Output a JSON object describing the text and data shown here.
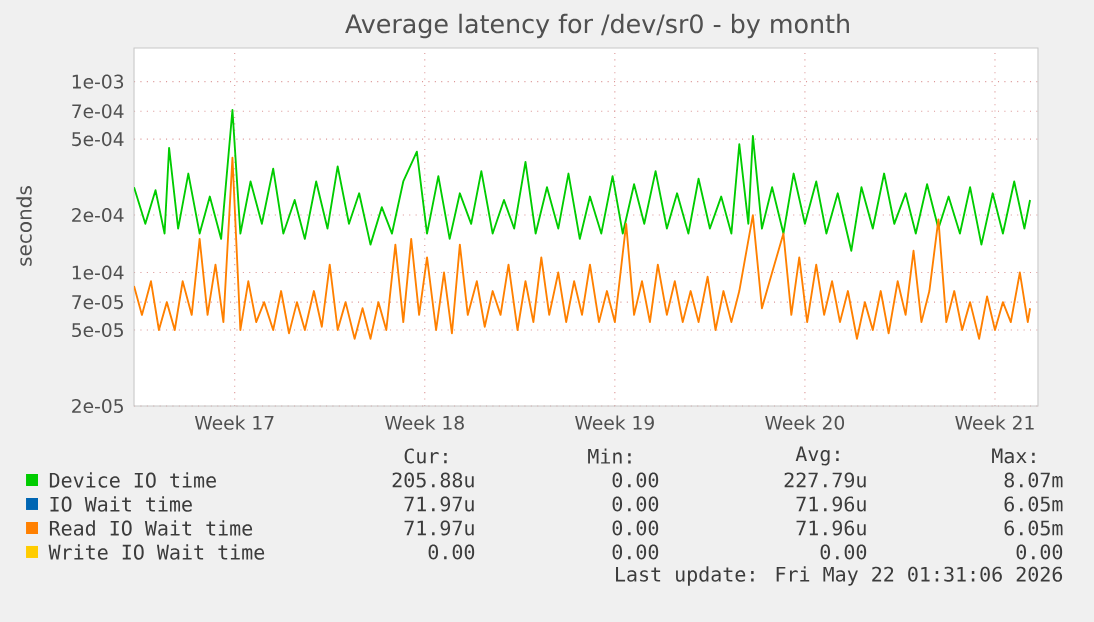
{
  "chart_data": {
    "type": "line",
    "title": "Average latency for /dev/sr0 - by month",
    "ylabel": "seconds",
    "log": true,
    "grid": true,
    "legend": "bottom",
    "xlim": [
      "2026-04-19T19:00",
      "2026-05-23T02:00"
    ],
    "xticks": [
      {
        "value": "2026-04-23T12:00",
        "label": "Week 17"
      },
      {
        "value": "2026-04-30T12:00",
        "label": "Week 18"
      },
      {
        "value": "2026-05-07T12:00",
        "label": "Week 19"
      },
      {
        "value": "2026-05-14T12:00",
        "label": "Week 20"
      },
      {
        "value": "2026-05-21T12:00",
        "label": "Week 21"
      }
    ],
    "ylim": [
      2e-05,
      0.0015
    ],
    "yticks": [
      {
        "value": 2e-05,
        "label": "2e-05"
      },
      {
        "value": 5e-05,
        "label": "5e-05"
      },
      {
        "value": 7e-05,
        "label": "7e-05"
      },
      {
        "value": 0.0001,
        "label": "1e-04"
      },
      {
        "value": 0.0002,
        "label": "2e-04"
      },
      {
        "value": 0.0005,
        "label": "5e-04"
      },
      {
        "value": 0.0007,
        "label": "7e-04"
      },
      {
        "value": 0.001,
        "label": "1e-03"
      }
    ],
    "series": [
      {
        "name": "Device IO time",
        "color": "#00cc00",
        "x": [
          "2026-04-19T19:00",
          "2026-04-20T05:00",
          "2026-04-20T14:00",
          "2026-04-20T22:00",
          "2026-04-21T02:00",
          "2026-04-21T10:00",
          "2026-04-21T19:00",
          "2026-04-22T05:00",
          "2026-04-22T14:00",
          "2026-04-23T00:00",
          "2026-04-23T10:00",
          "2026-04-23T17:00",
          "2026-04-24T02:00",
          "2026-04-24T12:00",
          "2026-04-24T22:00",
          "2026-04-25T07:00",
          "2026-04-25T17:00",
          "2026-04-26T02:00",
          "2026-04-26T12:00",
          "2026-04-26T22:00",
          "2026-04-27T07:00",
          "2026-04-27T17:00",
          "2026-04-28T02:00",
          "2026-04-28T12:00",
          "2026-04-28T22:00",
          "2026-04-29T07:00",
          "2026-04-29T17:00",
          "2026-04-30T05:00",
          "2026-04-30T14:00",
          "2026-05-01T00:00",
          "2026-05-01T10:00",
          "2026-05-01T19:00",
          "2026-05-02T05:00",
          "2026-05-02T14:00",
          "2026-05-03T00:00",
          "2026-05-03T10:00",
          "2026-05-03T19:00",
          "2026-05-04T05:00",
          "2026-05-04T14:00",
          "2026-05-05T00:00",
          "2026-05-05T10:00",
          "2026-05-05T19:00",
          "2026-05-06T05:00",
          "2026-05-06T14:00",
          "2026-05-07T00:00",
          "2026-05-07T10:00",
          "2026-05-07T19:00",
          "2026-05-08T05:00",
          "2026-05-08T14:00",
          "2026-05-09T00:00",
          "2026-05-09T10:00",
          "2026-05-09T19:00",
          "2026-05-10T05:00",
          "2026-05-10T14:00",
          "2026-05-11T00:00",
          "2026-05-11T10:00",
          "2026-05-11T19:00",
          "2026-05-12T02:00",
          "2026-05-12T10:00",
          "2026-05-12T14:00",
          "2026-05-12T22:00",
          "2026-05-13T07:00",
          "2026-05-13T17:00",
          "2026-05-14T02:00",
          "2026-05-14T12:00",
          "2026-05-14T22:00",
          "2026-05-15T07:00",
          "2026-05-15T17:00",
          "2026-05-16T05:00",
          "2026-05-16T14:00",
          "2026-05-17T00:00",
          "2026-05-17T10:00",
          "2026-05-17T19:00",
          "2026-05-18T05:00",
          "2026-05-18T14:00",
          "2026-05-19T00:00",
          "2026-05-19T10:00",
          "2026-05-19T19:00",
          "2026-05-20T05:00",
          "2026-05-20T14:00",
          "2026-05-21T00:00",
          "2026-05-21T10:00",
          "2026-05-21T19:00",
          "2026-05-22T05:00",
          "2026-05-22T14:00",
          "2026-05-22T19:00"
        ],
        "values": [
          0.00028,
          0.00018,
          0.00027,
          0.00016,
          0.00045,
          0.00017,
          0.00033,
          0.00016,
          0.00025,
          0.00015,
          0.00071,
          0.00016,
          0.0003,
          0.00018,
          0.00035,
          0.00016,
          0.00024,
          0.00015,
          0.0003,
          0.00017,
          0.00036,
          0.00018,
          0.00026,
          0.00014,
          0.00022,
          0.00016,
          0.0003,
          0.00043,
          0.00016,
          0.00032,
          0.00015,
          0.00026,
          0.00018,
          0.00034,
          0.00016,
          0.00024,
          0.00017,
          0.00038,
          0.00016,
          0.00028,
          0.00017,
          0.00033,
          0.00015,
          0.00025,
          0.00016,
          0.00032,
          0.00016,
          0.00029,
          0.00018,
          0.00034,
          0.00017,
          0.00026,
          0.00016,
          0.00031,
          0.00017,
          0.00025,
          0.00016,
          0.00047,
          0.00018,
          0.00052,
          0.00017,
          0.00028,
          0.00016,
          0.00033,
          0.00018,
          0.0003,
          0.00016,
          0.00026,
          0.00013,
          0.00028,
          0.00017,
          0.00033,
          0.00018,
          0.00026,
          0.00016,
          0.00029,
          0.00017,
          0.00025,
          0.00016,
          0.00028,
          0.00014,
          0.00026,
          0.00016,
          0.0003,
          0.00017,
          0.00024
        ]
      },
      {
        "name": "IO Wait time",
        "color": "#0066b3",
        "values": [
          null
        ]
      },
      {
        "name": "Read IO Wait time",
        "color": "#ff8000",
        "x": [
          "2026-04-19T19:00",
          "2026-04-20T02:00",
          "2026-04-20T10:00",
          "2026-04-20T17:00",
          "2026-04-21T00:00",
          "2026-04-21T07:00",
          "2026-04-21T14:00",
          "2026-04-21T22:00",
          "2026-04-22T05:00",
          "2026-04-22T12:00",
          "2026-04-22T19:00",
          "2026-04-23T02:00",
          "2026-04-23T10:00",
          "2026-04-23T17:00",
          "2026-04-24T00:00",
          "2026-04-24T07:00",
          "2026-04-24T14:00",
          "2026-04-24T22:00",
          "2026-04-25T05:00",
          "2026-04-25T12:00",
          "2026-04-25T19:00",
          "2026-04-26T02:00",
          "2026-04-26T10:00",
          "2026-04-26T17:00",
          "2026-04-27T00:00",
          "2026-04-27T07:00",
          "2026-04-27T14:00",
          "2026-04-27T22:00",
          "2026-04-28T05:00",
          "2026-04-28T12:00",
          "2026-04-28T19:00",
          "2026-04-29T02:00",
          "2026-04-29T10:00",
          "2026-04-29T17:00",
          "2026-04-30T00:00",
          "2026-04-30T07:00",
          "2026-04-30T14:00",
          "2026-04-30T22:00",
          "2026-05-01T05:00",
          "2026-05-01T12:00",
          "2026-05-01T19:00",
          "2026-05-02T02:00",
          "2026-05-02T10:00",
          "2026-05-02T17:00",
          "2026-05-03T00:00",
          "2026-05-03T07:00",
          "2026-05-03T14:00",
          "2026-05-03T22:00",
          "2026-05-04T05:00",
          "2026-05-04T12:00",
          "2026-05-04T19:00",
          "2026-05-05T02:00",
          "2026-05-05T10:00",
          "2026-05-05T17:00",
          "2026-05-06T00:00",
          "2026-05-06T07:00",
          "2026-05-06T14:00",
          "2026-05-06T22:00",
          "2026-05-07T05:00",
          "2026-05-07T12:00",
          "2026-05-07T22:00",
          "2026-05-08T05:00",
          "2026-05-08T12:00",
          "2026-05-08T19:00",
          "2026-05-09T02:00",
          "2026-05-09T10:00",
          "2026-05-09T17:00",
          "2026-05-10T00:00",
          "2026-05-10T07:00",
          "2026-05-10T14:00",
          "2026-05-10T22:00",
          "2026-05-11T05:00",
          "2026-05-11T12:00",
          "2026-05-11T19:00",
          "2026-05-12T02:00",
          "2026-05-12T14:00",
          "2026-05-12T22:00",
          "2026-05-13T07:00",
          "2026-05-13T17:00",
          "2026-05-14T00:00",
          "2026-05-14T07:00",
          "2026-05-14T14:00",
          "2026-05-14T22:00",
          "2026-05-15T05:00",
          "2026-05-15T12:00",
          "2026-05-15T19:00",
          "2026-05-16T02:00",
          "2026-05-16T10:00",
          "2026-05-16T17:00",
          "2026-05-17T00:00",
          "2026-05-17T07:00",
          "2026-05-17T14:00",
          "2026-05-17T22:00",
          "2026-05-18T05:00",
          "2026-05-18T12:00",
          "2026-05-18T19:00",
          "2026-05-19T02:00",
          "2026-05-19T10:00",
          "2026-05-19T17:00",
          "2026-05-20T00:00",
          "2026-05-20T07:00",
          "2026-05-20T14:00",
          "2026-05-20T22:00",
          "2026-05-21T05:00",
          "2026-05-21T12:00",
          "2026-05-21T19:00",
          "2026-05-22T02:00",
          "2026-05-22T10:00",
          "2026-05-22T17:00",
          "2026-05-22T19:00"
        ],
        "values": [
          8.5e-05,
          6e-05,
          9e-05,
          5e-05,
          7e-05,
          5e-05,
          9e-05,
          6e-05,
          0.00015,
          6e-05,
          0.00011,
          5.5e-05,
          0.0004,
          5e-05,
          9e-05,
          5.5e-05,
          7e-05,
          5e-05,
          8e-05,
          4.8e-05,
          7e-05,
          5e-05,
          8e-05,
          5.2e-05,
          0.00011,
          5e-05,
          7e-05,
          4.5e-05,
          6.5e-05,
          4.5e-05,
          7e-05,
          5e-05,
          0.00014,
          5.5e-05,
          0.00015,
          6e-05,
          0.00012,
          5e-05,
          0.0001,
          4.8e-05,
          0.00014,
          6e-05,
          9e-05,
          5.2e-05,
          8e-05,
          6e-05,
          0.00011,
          5e-05,
          9e-05,
          5.5e-05,
          0.00012,
          6e-05,
          0.0001,
          5.5e-05,
          9e-05,
          6e-05,
          0.00011,
          5.5e-05,
          8e-05,
          5.5e-05,
          0.00018,
          6e-05,
          9e-05,
          5.5e-05,
          0.00011,
          6e-05,
          9e-05,
          5.5e-05,
          8e-05,
          5.5e-05,
          9.5e-05,
          5e-05,
          8e-05,
          5.5e-05,
          8e-05,
          0.0002,
          6.5e-05,
          0.0001,
          0.00016,
          6e-05,
          0.00012,
          5.5e-05,
          0.00011,
          6e-05,
          9e-05,
          5.5e-05,
          8e-05,
          4.5e-05,
          7e-05,
          5e-05,
          8e-05,
          4.8e-05,
          9e-05,
          6e-05,
          0.00013,
          5.5e-05,
          8e-05,
          0.00019,
          5.5e-05,
          8e-05,
          5e-05,
          7e-05,
          4.5e-05,
          7.5e-05,
          5e-05,
          7e-05,
          5.5e-05,
          0.0001,
          5.5e-05,
          6.5e-05
        ]
      },
      {
        "name": "Write IO Wait time",
        "color": "#ffcc00",
        "values": [
          null
        ]
      }
    ],
    "annotations": [
      "Cur:",
      "Min:",
      "Avg:",
      "Max:",
      "205.88u",
      "0.00",
      "227.79u",
      "8.07m",
      "71.97u",
      "0.00",
      "71.96u",
      "6.05m",
      "71.97u",
      "0.00",
      "71.96u",
      "6.05m",
      "0.00",
      "0.00",
      "0.00",
      "0.00",
      "Last update: Fri May 22 01:31:06 2026"
    ]
  }
}
